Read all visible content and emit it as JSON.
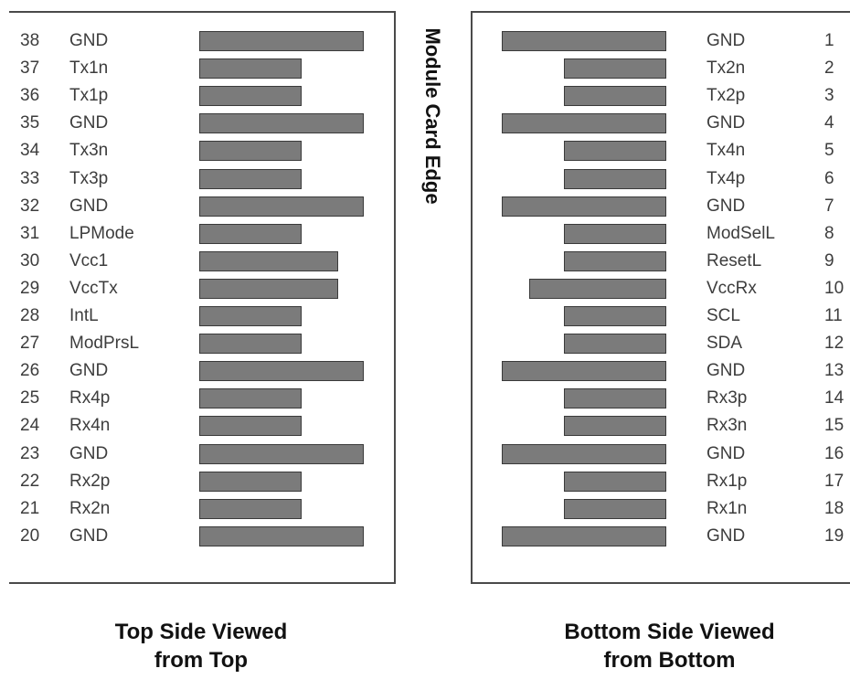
{
  "edge_label": "Module Card Edge",
  "top_side": {
    "caption_line1": "Top Side Viewed",
    "caption_line2": "from Top",
    "pins": [
      {
        "num": "38",
        "signal": "GND",
        "pad": "long"
      },
      {
        "num": "37",
        "signal": "Tx1n",
        "pad": "short"
      },
      {
        "num": "36",
        "signal": "Tx1p",
        "pad": "short"
      },
      {
        "num": "35",
        "signal": "GND",
        "pad": "long"
      },
      {
        "num": "34",
        "signal": "Tx3n",
        "pad": "short"
      },
      {
        "num": "33",
        "signal": "Tx3p",
        "pad": "short"
      },
      {
        "num": "32",
        "signal": "GND",
        "pad": "long"
      },
      {
        "num": "31",
        "signal": "LPMode",
        "pad": "short"
      },
      {
        "num": "30",
        "signal": "Vcc1",
        "pad": "medium"
      },
      {
        "num": "29",
        "signal": "VccTx",
        "pad": "medium"
      },
      {
        "num": "28",
        "signal": "IntL",
        "pad": "short"
      },
      {
        "num": "27",
        "signal": "ModPrsL",
        "pad": "short"
      },
      {
        "num": "26",
        "signal": "GND",
        "pad": "long"
      },
      {
        "num": "25",
        "signal": "Rx4p",
        "pad": "short"
      },
      {
        "num": "24",
        "signal": "Rx4n",
        "pad": "short"
      },
      {
        "num": "23",
        "signal": "GND",
        "pad": "long"
      },
      {
        "num": "22",
        "signal": "Rx2p",
        "pad": "short"
      },
      {
        "num": "21",
        "signal": "Rx2n",
        "pad": "short"
      },
      {
        "num": "20",
        "signal": "GND",
        "pad": "long"
      }
    ]
  },
  "bottom_side": {
    "caption_line1": "Bottom Side Viewed",
    "caption_line2": "from Bottom",
    "pins": [
      {
        "num": "1",
        "signal": "GND",
        "pad": "long"
      },
      {
        "num": "2",
        "signal": "Tx2n",
        "pad": "short"
      },
      {
        "num": "3",
        "signal": "Tx2p",
        "pad": "short"
      },
      {
        "num": "4",
        "signal": "GND",
        "pad": "long"
      },
      {
        "num": "5",
        "signal": "Tx4n",
        "pad": "short"
      },
      {
        "num": "6",
        "signal": "Tx4p",
        "pad": "short"
      },
      {
        "num": "7",
        "signal": "GND",
        "pad": "long"
      },
      {
        "num": "8",
        "signal": "ModSelL",
        "pad": "short"
      },
      {
        "num": "9",
        "signal": "ResetL",
        "pad": "short"
      },
      {
        "num": "10",
        "signal": "VccRx",
        "pad": "medium"
      },
      {
        "num": "11",
        "signal": "SCL",
        "pad": "short"
      },
      {
        "num": "12",
        "signal": "SDA",
        "pad": "short"
      },
      {
        "num": "13",
        "signal": "GND",
        "pad": "long"
      },
      {
        "num": "14",
        "signal": "Rx3p",
        "pad": "short"
      },
      {
        "num": "15",
        "signal": "Rx3n",
        "pad": "short"
      },
      {
        "num": "16",
        "signal": "GND",
        "pad": "long"
      },
      {
        "num": "17",
        "signal": "Rx1p",
        "pad": "short"
      },
      {
        "num": "18",
        "signal": "Rx1n",
        "pad": "short"
      },
      {
        "num": "19",
        "signal": "GND",
        "pad": "long"
      }
    ]
  }
}
